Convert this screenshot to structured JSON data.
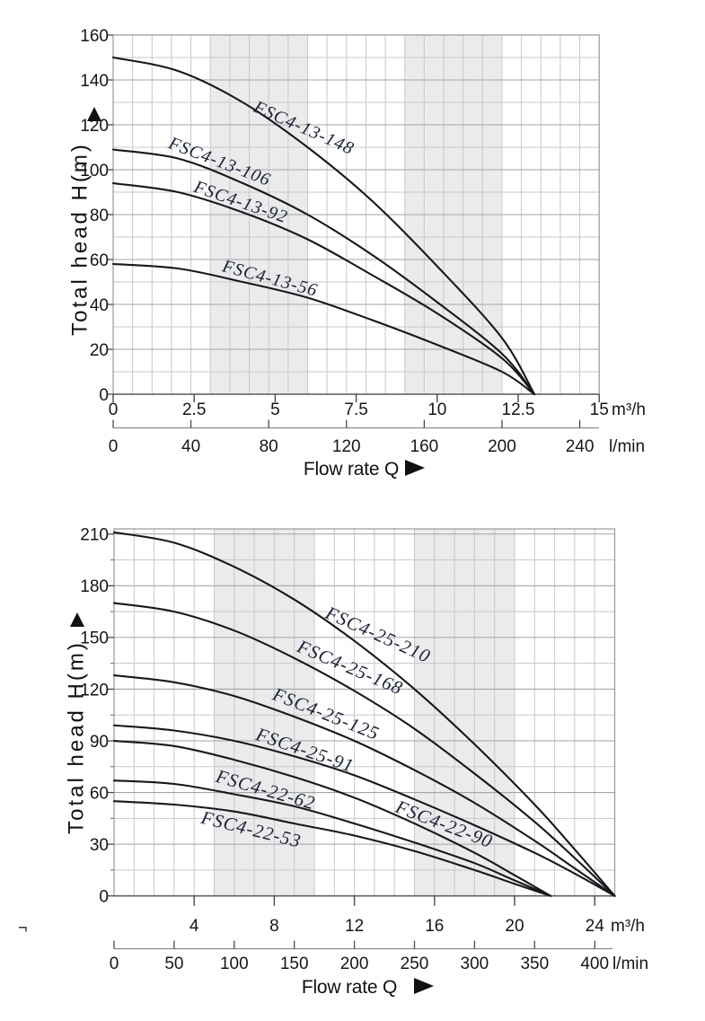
{
  "misc": {
    "stray_mark": "¬"
  },
  "chart_data": [
    {
      "id": "chart-fsc4-13",
      "type": "line",
      "title": "",
      "ylabel": "Total head H(m)",
      "xlabel": "Flow rate Q",
      "unit_primary": "m³/h",
      "unit_secondary": "l/min",
      "xlim": [
        0,
        15
      ],
      "ylim": [
        0,
        160
      ],
      "x_grid_step": 0.6,
      "y_minor_step": 10,
      "y_major_step": 20,
      "y_ticks": [
        0,
        20,
        40,
        60,
        80,
        100,
        120,
        140,
        160
      ],
      "x_ticks_primary": [
        0,
        2.5,
        5,
        7.5,
        10,
        12.5,
        15
      ],
      "x_ticks_secondary": [
        0,
        40,
        80,
        120,
        160,
        200,
        240
      ],
      "lmin_per_m3h": 16.6667,
      "bands": [
        [
          3,
          6
        ],
        [
          9,
          12
        ]
      ],
      "grid": true,
      "legend_position": "labels-on-curves",
      "series": [
        {
          "name": "FSC4-13-148",
          "x": [
            0,
            2,
            4,
            6,
            8,
            10,
            12,
            13
          ],
          "h": [
            150,
            144,
            130,
            110,
            86,
            57,
            25,
            0
          ],
          "label": {
            "q": 5.9,
            "h": 119,
            "angle": 24
          }
        },
        {
          "name": "FSC4-13-106",
          "x": [
            0,
            2,
            4,
            6,
            8,
            10,
            12,
            13
          ],
          "h": [
            109,
            105,
            94,
            80,
            62,
            41,
            18,
            0
          ],
          "label": {
            "q": 3.3,
            "h": 104,
            "angle": 21
          }
        },
        {
          "name": "FSC4-13-92",
          "x": [
            0,
            2,
            4,
            6,
            8,
            10,
            12,
            13
          ],
          "h": [
            94,
            90,
            81,
            69,
            53,
            36,
            16,
            0
          ],
          "label": {
            "q": 3.95,
            "h": 86,
            "angle": 19
          }
        },
        {
          "name": "FSC4-13-56",
          "x": [
            0,
            2,
            4,
            6,
            8,
            10,
            12,
            13
          ],
          "h": [
            58,
            56,
            50,
            43,
            33,
            22,
            10,
            0
          ],
          "label": {
            "q": 4.85,
            "h": 52,
            "angle": 15
          }
        }
      ]
    },
    {
      "id": "chart-fsc4-25-22",
      "type": "line",
      "title": "",
      "ylabel": "Total head H(m)",
      "xlabel": "Flow rate Q",
      "unit_primary": "m³/h",
      "unit_secondary": "l/min",
      "xlim": [
        0,
        25
      ],
      "ylim": [
        0,
        213
      ],
      "x_grid_step": 1,
      "y_minor_step": 15,
      "y_major_step": 30,
      "y_ticks": [
        0,
        30,
        60,
        90,
        120,
        150,
        180,
        210
      ],
      "x_ticks_primary": [
        4,
        8,
        12,
        16,
        20,
        24
      ],
      "x_ticks_secondary": [
        0,
        50,
        100,
        150,
        200,
        250,
        300,
        350,
        400
      ],
      "lmin_per_m3h": 16.6667,
      "bands": [
        [
          5,
          10
        ],
        [
          15,
          20
        ]
      ],
      "grid": true,
      "legend_position": "labels-on-curves",
      "series": [
        {
          "name": "FSC4-25-210",
          "x": [
            0,
            3,
            6,
            9,
            12,
            15,
            18,
            21,
            23,
            25
          ],
          "h": [
            211,
            205,
            191,
            172,
            148,
            120,
            88,
            53,
            27,
            0
          ],
          "label": {
            "q": 13.2,
            "h": 152,
            "angle": 24
          }
        },
        {
          "name": "FSC4-25-168",
          "x": [
            0,
            3,
            6,
            9,
            12,
            15,
            18,
            21,
            23,
            25
          ],
          "h": [
            170,
            165,
            154,
            138,
            119,
            97,
            71,
            43,
            22,
            0
          ],
          "label": {
            "q": 11.8,
            "h": 133,
            "angle": 23
          }
        },
        {
          "name": "FSC4-25-125",
          "x": [
            0,
            3,
            6,
            9,
            12,
            15,
            18,
            21,
            23,
            25
          ],
          "h": [
            128,
            124,
            116,
            104,
            90,
            73,
            54,
            32,
            16,
            0
          ],
          "label": {
            "q": 10.6,
            "h": 106,
            "angle": 21.5
          }
        },
        {
          "name": "FSC4-25-91",
          "x": [
            0,
            3,
            6,
            9,
            12,
            15,
            18,
            21,
            23,
            25
          ],
          "h": [
            99,
            96,
            90,
            81,
            70,
            56,
            41,
            25,
            13,
            0
          ],
          "label": {
            "q": 9.55,
            "h": 85,
            "angle": 19
          }
        },
        {
          "name": "FSC4-22-90",
          "x": [
            0,
            3,
            6,
            9,
            12,
            15,
            18,
            20,
            21.8
          ],
          "h": [
            90,
            87,
            79,
            69,
            57,
            42,
            25,
            12,
            0
          ],
          "label": {
            "q": 16.5,
            "h": 42,
            "angle": 21
          }
        },
        {
          "name": "FSC4-22-62",
          "x": [
            0,
            3,
            6,
            9,
            12,
            15,
            18,
            20,
            21.8
          ],
          "h": [
            67,
            65,
            59,
            52,
            42,
            31,
            19,
            9,
            0
          ],
          "label": {
            "q": 7.58,
            "h": 62,
            "angle": 16
          }
        },
        {
          "name": "FSC4-22-53",
          "x": [
            0,
            3,
            6,
            9,
            12,
            15,
            18,
            20,
            21.8
          ],
          "h": [
            55,
            53,
            49,
            42,
            35,
            26,
            15,
            7,
            0
          ],
          "label": {
            "q": 6.86,
            "h": 39,
            "angle": 14
          }
        }
      ]
    }
  ]
}
